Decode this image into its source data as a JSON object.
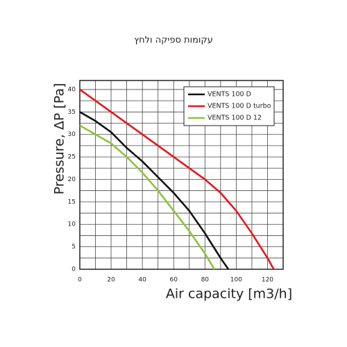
{
  "chart_data": {
    "type": "line",
    "title": "עקומות ספיקה ולחץ",
    "x_label": "Air capacity [m3/h]",
    "y_label": "Pressure, ΔP [Pa]",
    "xlim": [
      0,
      130
    ],
    "xticks": [
      0,
      20,
      40,
      60,
      80,
      100,
      120
    ],
    "x_minor_ticks": [
      10,
      30,
      50,
      70,
      90,
      110
    ],
    "ylim": [
      0,
      42
    ],
    "yticks": [
      0,
      5,
      10,
      15,
      20,
      25,
      30,
      35,
      40
    ],
    "y_minor_ticks": [
      2.5,
      7.5,
      12.5,
      17.5,
      22.5,
      27.5,
      32.5,
      37.5
    ],
    "grid": true,
    "legend": "upper right",
    "series": [
      {
        "name": "VENTS 100 D",
        "color": "#111111",
        "x": [
          0,
          10,
          20,
          30,
          40,
          50,
          60,
          70,
          80,
          90,
          95
        ],
        "values": [
          35,
          33,
          30.5,
          27,
          24,
          20.5,
          17,
          13,
          8,
          2.5,
          0
        ]
      },
      {
        "name": "VENTS 100 D turbo",
        "color": "#e8161b",
        "x": [
          0,
          20,
          40,
          60,
          70,
          80,
          90,
          100,
          110,
          120,
          124
        ],
        "values": [
          40,
          35,
          30,
          25,
          22.5,
          20,
          17,
          13,
          8,
          2.5,
          0
        ]
      },
      {
        "name": "VENTS 100 D 12",
        "color": "#8cc43c",
        "x": [
          0,
          20,
          30,
          40,
          50,
          60,
          70,
          80,
          86
        ],
        "values": [
          32,
          28,
          25,
          21.5,
          17.5,
          13,
          8.5,
          3.5,
          0
        ]
      }
    ]
  }
}
